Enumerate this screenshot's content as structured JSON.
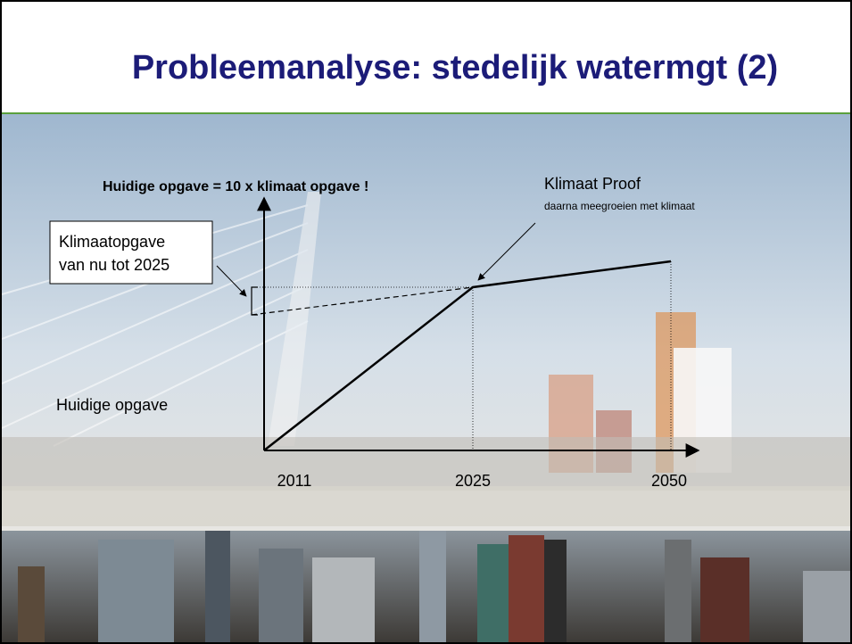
{
  "header": {
    "title": "Probleemanalyse: stedelijk watermgt (2)"
  },
  "diagram": {
    "heading": "Huidige opgave = 10 x klimaat opgave !",
    "callout": {
      "lines": [
        "Klimaatopgave",
        "van nu tot 2025"
      ]
    },
    "proof": {
      "title": "Klimaat Proof",
      "subtitle": "daarna meegroeien met klimaat"
    },
    "left_label": "Huidige opgave",
    "x_labels": [
      "2011",
      "2025",
      "2050"
    ]
  }
}
